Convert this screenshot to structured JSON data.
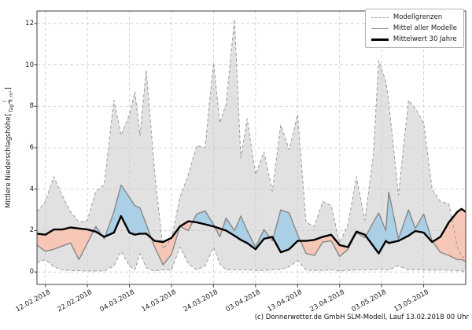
{
  "footer": {
    "caption": "(c) Donnerwetter.de GmbH SLM-Modell, Lauf 13.02.2018 00 Uhr"
  },
  "chart_data": {
    "type": "line",
    "title": "",
    "xlabel": "",
    "ylabel": {
      "text": "Mittlere Niederschlagshöhe",
      "bracket_open": "[",
      "unit_numerator": "l",
      "unit_denominator": "Tag × m²",
      "bracket_close": "]"
    },
    "grid": true,
    "legend_position": "top-right",
    "legend": [
      {
        "label": "Modellgrenzen",
        "style": "dashed",
        "color": "#9a9a9a"
      },
      {
        "label": "Mittel aller Modelle",
        "style": "solid",
        "color": "#878787"
      },
      {
        "label": "Mittelwert 30 Jahre",
        "style": "solid-thick",
        "color": "#000000"
      }
    ],
    "x_axis": {
      "range_days": [
        -2,
        100
      ],
      "tick_days": [
        0,
        10,
        20,
        30,
        40,
        50,
        60,
        70,
        80,
        90
      ],
      "tick_labels": [
        "12.02.2018",
        "22.02.2018",
        "04.03.2018",
        "14.03.2018",
        "24.03.2018",
        "03.04.2018",
        "13.04.2018",
        "23.04.2018",
        "03.05.2018",
        "13.05.2018"
      ]
    },
    "y_axis": {
      "range": [
        -0.6,
        12.6
      ],
      "ticks": [
        0,
        2,
        4,
        6,
        8,
        10,
        12
      ]
    },
    "x_days": [
      -2,
      0,
      2,
      4,
      6,
      8,
      10,
      12,
      14,
      16.3,
      18,
      20,
      21.3,
      22.5,
      24,
      26,
      28,
      30,
      32,
      34,
      36,
      38,
      40,
      41.5,
      43,
      45,
      46.5,
      48,
      50,
      52,
      54,
      56,
      58,
      60,
      62,
      64,
      66,
      68,
      70,
      72,
      74,
      76,
      78,
      79.3,
      81,
      81.7,
      84,
      86.4,
      88,
      90,
      92,
      94,
      96,
      98,
      99,
      100
    ],
    "series": [
      {
        "name": "Modellgrenzen (oberes Limit)",
        "style": "dashed-gray",
        "values": [
          2.9,
          3.4,
          4.6,
          3.7,
          2.9,
          2.4,
          2.5,
          3.9,
          4.2,
          8.3,
          6.6,
          7.6,
          8.7,
          6.6,
          9.75,
          4.8,
          1.1,
          1.6,
          3.6,
          4.7,
          6.1,
          6.0,
          10.1,
          7.2,
          8.1,
          12.2,
          5.5,
          7.4,
          4.7,
          5.8,
          3.9,
          7.1,
          5.9,
          7.6,
          2.4,
          2.2,
          3.4,
          3.2,
          1.4,
          2.3,
          4.6,
          2.5,
          5.6,
          10.2,
          9.2,
          8.2,
          3.7,
          8.3,
          7.9,
          7.2,
          4.0,
          3.4,
          3.3,
          1.2,
          0.8,
          0.55
        ]
      },
      {
        "name": "Modellgrenzen (unteres Limit)",
        "style": "dashed-gray",
        "values": [
          0.45,
          0.6,
          0.25,
          0.1,
          0.07,
          0.06,
          0.05,
          0.05,
          0.05,
          0.3,
          1.0,
          0.3,
          0.1,
          0.9,
          0.2,
          0.05,
          0.1,
          0.1,
          1.2,
          0.4,
          0.1,
          0.3,
          1.2,
          0.4,
          0.1,
          0.1,
          0.1,
          0.1,
          0.08,
          0.07,
          0.1,
          0.12,
          0.25,
          0.55,
          0.1,
          0.07,
          0.08,
          0.1,
          0.05,
          0.07,
          0.1,
          0.1,
          0.1,
          0.15,
          0.1,
          0.1,
          0.3,
          0.1,
          0.12,
          0.1,
          0.08,
          0.1,
          0.08,
          0.06,
          0.05,
          0.04
        ]
      },
      {
        "name": "Mittel aller Modelle",
        "style": "solid-gray",
        "values": [
          1.3,
          1.0,
          1.1,
          1.25,
          1.4,
          0.6,
          1.4,
          2.2,
          1.6,
          2.9,
          4.2,
          3.6,
          3.2,
          3.1,
          2.3,
          1.2,
          0.35,
          0.85,
          2.2,
          2.0,
          2.8,
          2.95,
          2.3,
          1.7,
          2.6,
          2.0,
          2.7,
          2.0,
          1.2,
          2.05,
          1.5,
          3.0,
          2.85,
          1.8,
          0.9,
          0.8,
          1.45,
          1.5,
          0.75,
          1.1,
          1.9,
          1.65,
          2.4,
          2.85,
          2.0,
          3.85,
          1.6,
          3.0,
          2.1,
          2.8,
          1.5,
          0.95,
          0.8,
          0.6,
          0.6,
          0.5
        ]
      },
      {
        "name": "Mittelwert 30 Jahre",
        "style": "solid-black-thick",
        "values": [
          1.85,
          1.8,
          2.05,
          2.05,
          2.15,
          2.1,
          2.05,
          1.95,
          1.7,
          1.9,
          2.7,
          1.9,
          1.8,
          1.85,
          1.85,
          1.5,
          1.45,
          1.65,
          2.2,
          2.45,
          2.4,
          2.3,
          2.2,
          2.1,
          2.0,
          1.75,
          1.55,
          1.4,
          1.1,
          1.6,
          1.7,
          0.95,
          1.1,
          1.5,
          1.5,
          1.55,
          1.7,
          1.8,
          1.3,
          1.2,
          1.95,
          1.8,
          1.25,
          0.9,
          1.5,
          1.4,
          1.5,
          1.75,
          1.98,
          1.9,
          1.45,
          1.7,
          2.4,
          2.9,
          3.05,
          2.9
        ]
      }
    ],
    "colors": {
      "band_fill": "#e1e1e1",
      "above_30y_fill": "#abd0e6",
      "below_30y_fill": "#f6c7b6",
      "bound_line": "#9a9a9a",
      "mean_line": "#878787",
      "mean30_line": "#000000",
      "grid": "#cccccc",
      "frame": "#3c3c3c"
    }
  }
}
